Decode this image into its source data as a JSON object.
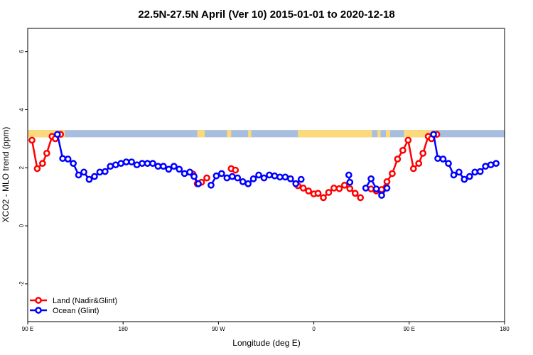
{
  "chart_data": {
    "type": "line",
    "title": "22.5N-27.5N April (Ver 10)   2015-01-01 to 2020-12-18",
    "xlabel": "Longitude (deg E)",
    "ylabel": "XCO2 - MLO trend (ppm)",
    "xlim": [
      90,
      540
    ],
    "ylim": [
      -3.3,
      6.8
    ],
    "x_ticks": [
      {
        "value": 90,
        "label": "90 E"
      },
      {
        "value": 180,
        "label": "180"
      },
      {
        "value": 270,
        "label": "90 W"
      },
      {
        "value": 360,
        "label": "0"
      },
      {
        "value": 450,
        "label": "90 E"
      },
      {
        "value": 540,
        "label": "180"
      }
    ],
    "y_ticks": [
      {
        "value": -2,
        "label": "-2"
      },
      {
        "value": 0,
        "label": "0"
      },
      {
        "value": 2,
        "label": "2"
      },
      {
        "value": 4,
        "label": "4"
      },
      {
        "value": 6,
        "label": "6"
      }
    ],
    "land_ocean_band": {
      "y_range": [
        3.05,
        3.3
      ],
      "ocean_color": "#a8bede",
      "land_color": "#fcd97a",
      "land_segments": [
        [
          90,
          125
        ],
        [
          250,
          257
        ],
        [
          278,
          282
        ],
        [
          298,
          301
        ],
        [
          345,
          415
        ],
        [
          420,
          423
        ],
        [
          428,
          432
        ],
        [
          445,
          475
        ]
      ]
    },
    "legend_position": "bottom-left",
    "series": [
      {
        "name": "Land (Nadir&Glint)",
        "color": "#ff0000",
        "segments": [
          [
            [
              94,
              2.95
            ],
            [
              99,
              1.97
            ],
            [
              104,
              2.15
            ],
            [
              108,
              2.5
            ],
            [
              113,
              3.08
            ],
            [
              116,
              3.0
            ],
            [
              121,
              3.15
            ]
          ],
          [
            [
              246,
              1.78
            ],
            [
              250,
              1.45
            ],
            [
              254,
              1.5
            ],
            [
              259,
              1.65
            ]
          ],
          [
            [
              282,
              1.97
            ],
            [
              286,
              1.92
            ]
          ],
          [
            [
              345,
              1.38
            ],
            [
              350,
              1.3
            ],
            [
              355,
              1.2
            ],
            [
              360,
              1.1
            ],
            [
              364,
              1.12
            ],
            [
              369,
              0.97
            ],
            [
              374,
              1.15
            ],
            [
              379,
              1.3
            ],
            [
              384,
              1.28
            ],
            [
              389,
              1.4
            ],
            [
              394,
              1.28
            ],
            [
              399,
              1.12
            ],
            [
              404,
              0.97
            ]
          ],
          [
            [
              414,
              1.27
            ],
            [
              419,
              1.2
            ],
            [
              424,
              1.25
            ],
            [
              429,
              1.52
            ],
            [
              434,
              1.8
            ],
            [
              439,
              2.3
            ],
            [
              444,
              2.6
            ],
            [
              449,
              2.95
            ],
            [
              454,
              1.97
            ],
            [
              459,
              2.15
            ],
            [
              463,
              2.5
            ],
            [
              468,
              3.08
            ],
            [
              471,
              3.0
            ],
            [
              476,
              3.15
            ]
          ]
        ]
      },
      {
        "name": "Ocean (Glint)",
        "color": "#0000ff",
        "segments": [
          [
            [
              118,
              3.15
            ],
            [
              123,
              2.32
            ],
            [
              128,
              2.3
            ],
            [
              133,
              2.15
            ],
            [
              138,
              1.75
            ],
            [
              143,
              1.85
            ],
            [
              148,
              1.6
            ],
            [
              153,
              1.7
            ],
            [
              158,
              1.85
            ],
            [
              163,
              1.87
            ],
            [
              168,
              2.05
            ],
            [
              173,
              2.1
            ],
            [
              178,
              2.15
            ],
            [
              183,
              2.2
            ],
            [
              188,
              2.2
            ],
            [
              193,
              2.1
            ],
            [
              198,
              2.15
            ],
            [
              203,
              2.15
            ],
            [
              208,
              2.15
            ],
            [
              213,
              2.05
            ],
            [
              218,
              2.05
            ],
            [
              223,
              1.95
            ],
            [
              228,
              2.05
            ],
            [
              233,
              1.95
            ],
            [
              238,
              1.8
            ],
            [
              243,
              1.85
            ],
            [
              247,
              1.7
            ],
            [
              251,
              1.45
            ]
          ],
          [
            [
              263,
              1.4
            ],
            [
              268,
              1.72
            ],
            [
              273,
              1.8
            ],
            [
              278,
              1.65
            ],
            [
              283,
              1.7
            ],
            [
              288,
              1.65
            ],
            [
              293,
              1.52
            ],
            [
              298,
              1.45
            ],
            [
              303,
              1.62
            ],
            [
              308,
              1.75
            ],
            [
              313,
              1.65
            ],
            [
              318,
              1.75
            ],
            [
              323,
              1.72
            ],
            [
              328,
              1.68
            ],
            [
              333,
              1.68
            ],
            [
              338,
              1.62
            ],
            [
              343,
              1.45
            ],
            [
              348,
              1.6
            ]
          ],
          [
            [
              393,
              1.75
            ],
            [
              394,
              1.5
            ]
          ],
          [
            [
              409,
              1.3
            ],
            [
              414,
              1.62
            ],
            [
              419,
              1.27
            ],
            [
              424,
              1.05
            ],
            [
              429,
              1.3
            ]
          ],
          [
            [
              473,
              3.15
            ],
            [
              477,
              2.32
            ],
            [
              482,
              2.3
            ],
            [
              487,
              2.15
            ],
            [
              492,
              1.75
            ],
            [
              497,
              1.85
            ],
            [
              502,
              1.6
            ],
            [
              507,
              1.7
            ],
            [
              512,
              1.85
            ],
            [
              517,
              1.87
            ],
            [
              522,
              2.05
            ],
            [
              527,
              2.1
            ],
            [
              532,
              2.15
            ]
          ]
        ]
      }
    ]
  }
}
